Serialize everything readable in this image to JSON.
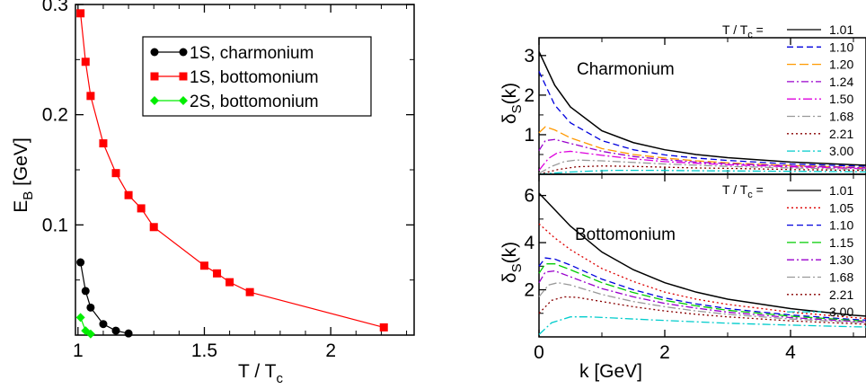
{
  "chart_data": [
    {
      "type": "scatter",
      "xlabel_main": "T / T",
      "xlabel_sub": "c",
      "ylabel_main": "E",
      "ylabel_sub": "B",
      "ylabel_unit": " [GeV]",
      "xlim": [
        0.99,
        2.33
      ],
      "ylim": [
        0,
        0.3
      ],
      "x_ticks": [
        1,
        1.5,
        2
      ],
      "x_tick_labels": [
        "1",
        "1.5",
        "2"
      ],
      "y_ticks": [
        0.1,
        0.2,
        0.3
      ],
      "y_tick_labels": [
        "0.1",
        "0.2",
        "0.3"
      ],
      "legend_position": "top-right",
      "series": [
        {
          "name": "1S, charmonium",
          "color": "#000000",
          "marker": "circle",
          "x": [
            1.01,
            1.03,
            1.05,
            1.1,
            1.15,
            1.2
          ],
          "y": [
            0.066,
            0.04,
            0.025,
            0.01,
            0.004,
            0.0015
          ]
        },
        {
          "name": "1S, bottomonium",
          "color": "#ff0000",
          "marker": "square",
          "x": [
            1.01,
            1.03,
            1.05,
            1.1,
            1.15,
            1.2,
            1.25,
            1.3,
            1.5,
            1.55,
            1.6,
            1.68,
            2.21
          ],
          "y": [
            0.292,
            0.248,
            0.217,
            0.174,
            0.147,
            0.127,
            0.115,
            0.098,
            0.063,
            0.056,
            0.048,
            0.039,
            0.007
          ]
        },
        {
          "name": "2S, bottomonium",
          "color": "#00ee00",
          "marker": "diamond",
          "x": [
            1.01,
            1.03,
            1.05
          ],
          "y": [
            0.016,
            0.004,
            0.001
          ]
        }
      ]
    },
    {
      "type": "line",
      "panel_title": "Charmonium",
      "ylabel_main": "δ",
      "ylabel_sub": "S",
      "ylabel_tail": "(k)",
      "xlim": [
        0,
        5.2
      ],
      "ylim": [
        0,
        3.45
      ],
      "y_ticks": [
        1,
        2,
        3
      ],
      "y_tick_labels": [
        "1",
        "2",
        "3"
      ],
      "legend_title_main": "T / T",
      "legend_title_sub": "c",
      "legend_title_tail": " =",
      "series": [
        {
          "name": "1.01",
          "color": "#000000",
          "dash": "",
          "x": [
            0,
            0.25,
            0.5,
            1,
            1.5,
            2,
            2.5,
            3,
            4,
            5,
            5.2
          ],
          "y": [
            3.1,
            2.25,
            1.7,
            1.1,
            0.8,
            0.62,
            0.5,
            0.42,
            0.31,
            0.24,
            0.23
          ]
        },
        {
          "name": "1.10",
          "color": "#0000dd",
          "dash": "7,4",
          "x": [
            0,
            0.25,
            0.5,
            1,
            1.5,
            2,
            2.5,
            3,
            4,
            5,
            5.2
          ],
          "y": [
            2.6,
            1.75,
            1.3,
            0.85,
            0.62,
            0.49,
            0.41,
            0.35,
            0.26,
            0.21,
            0.2
          ]
        },
        {
          "name": "1.20",
          "color": "#ff9900",
          "dash": "10,4",
          "x": [
            0,
            0.1,
            0.25,
            0.5,
            1,
            1.5,
            2,
            2.5,
            3,
            4,
            5,
            5.2
          ],
          "y": [
            1.05,
            1.2,
            1.12,
            0.92,
            0.65,
            0.5,
            0.41,
            0.34,
            0.29,
            0.22,
            0.18,
            0.17
          ]
        },
        {
          "name": "1.24",
          "color": "#9900cc",
          "dash": "8,3,2,3",
          "x": [
            0,
            0.1,
            0.25,
            0.5,
            1,
            1.5,
            2,
            2.5,
            3,
            4,
            5,
            5.2
          ],
          "y": [
            0.6,
            0.85,
            0.88,
            0.78,
            0.58,
            0.45,
            0.37,
            0.31,
            0.27,
            0.21,
            0.17,
            0.16
          ]
        },
        {
          "name": "1.50",
          "color": "#dd00dd",
          "dash": "10,3,2,3",
          "x": [
            0,
            0.15,
            0.3,
            0.5,
            1,
            1.5,
            2,
            2.5,
            3,
            4,
            5,
            5.2
          ],
          "y": [
            0.1,
            0.4,
            0.55,
            0.58,
            0.48,
            0.39,
            0.32,
            0.28,
            0.24,
            0.19,
            0.15,
            0.14
          ]
        },
        {
          "name": "1.68",
          "color": "#999999",
          "dash": "9,3,2,3",
          "x": [
            0,
            0.2,
            0.4,
            0.6,
            1,
            1.5,
            2,
            2.5,
            3,
            4,
            5,
            5.2
          ],
          "y": [
            0.02,
            0.2,
            0.32,
            0.36,
            0.34,
            0.3,
            0.26,
            0.23,
            0.2,
            0.16,
            0.13,
            0.12
          ]
        },
        {
          "name": "2.21",
          "color": "#880000",
          "dash": "2,3",
          "x": [
            0,
            0.3,
            0.6,
            1,
            1.5,
            2,
            2.5,
            3,
            4,
            5,
            5.2
          ],
          "y": [
            0.0,
            0.12,
            0.19,
            0.21,
            0.2,
            0.18,
            0.16,
            0.15,
            0.12,
            0.1,
            0.1
          ]
        },
        {
          "name": "3.00",
          "color": "#00cccc",
          "dash": "9,3,2,3",
          "x": [
            0,
            0.4,
            0.8,
            1.2,
            1.8,
            2.5,
            3,
            4,
            5,
            5.2
          ],
          "y": [
            0.0,
            0.05,
            0.08,
            0.1,
            0.1,
            0.09,
            0.085,
            0.075,
            0.065,
            0.06
          ]
        }
      ]
    },
    {
      "type": "line",
      "panel_title": "Bottomonium",
      "xlabel": "k [GeV]",
      "ylabel_main": "δ",
      "ylabel_sub": "S",
      "ylabel_tail": "(k)",
      "xlim": [
        0,
        5.2
      ],
      "ylim": [
        0,
        6.9
      ],
      "x_ticks": [
        0,
        2,
        4
      ],
      "x_tick_labels": [
        "0",
        "2",
        "4"
      ],
      "y_ticks": [
        2,
        4,
        6
      ],
      "y_tick_labels": [
        "2",
        "4",
        "6"
      ],
      "legend_title_main": "T / T",
      "legend_title_sub": "c",
      "legend_title_tail": " =",
      "series": [
        {
          "name": "1.01",
          "color": "#000000",
          "dash": "",
          "x": [
            0,
            0.25,
            0.5,
            1,
            1.5,
            2,
            2.5,
            3,
            4,
            5,
            5.2
          ],
          "y": [
            6.1,
            5.4,
            4.7,
            3.6,
            2.85,
            2.3,
            1.9,
            1.6,
            1.2,
            0.92,
            0.88
          ]
        },
        {
          "name": "1.05",
          "color": "#dd0000",
          "dash": "2,3",
          "x": [
            0,
            0.25,
            0.5,
            1,
            1.5,
            2,
            2.5,
            3,
            4,
            5,
            5.2
          ],
          "y": [
            4.8,
            4.2,
            3.7,
            2.9,
            2.35,
            1.9,
            1.6,
            1.38,
            1.05,
            0.82,
            0.78
          ]
        },
        {
          "name": "1.10",
          "color": "#0000dd",
          "dash": "7,4",
          "x": [
            0,
            0.1,
            0.25,
            0.5,
            1,
            1.5,
            2,
            2.5,
            3,
            4,
            5,
            5.2
          ],
          "y": [
            3.0,
            3.35,
            3.3,
            3.05,
            2.45,
            2.0,
            1.65,
            1.4,
            1.2,
            0.93,
            0.74,
            0.71
          ]
        },
        {
          "name": "1.15",
          "color": "#00cc00",
          "dash": "10,4",
          "x": [
            0,
            0.1,
            0.25,
            0.5,
            1,
            1.5,
            2,
            2.5,
            3,
            4,
            5,
            5.2
          ],
          "y": [
            2.7,
            3.1,
            3.1,
            2.85,
            2.3,
            1.88,
            1.55,
            1.32,
            1.13,
            0.88,
            0.7,
            0.67
          ]
        },
        {
          "name": "1.30",
          "color": "#9900cc",
          "dash": "8,3,2,3",
          "x": [
            0,
            0.1,
            0.25,
            0.5,
            1,
            1.5,
            2,
            2.5,
            3,
            4,
            5,
            5.2
          ],
          "y": [
            2.3,
            2.75,
            2.8,
            2.55,
            2.05,
            1.7,
            1.42,
            1.22,
            1.05,
            0.82,
            0.66,
            0.63
          ]
        },
        {
          "name": "1.68",
          "color": "#999999",
          "dash": "9,3,2,3",
          "x": [
            0,
            0.15,
            0.3,
            0.5,
            1,
            1.5,
            2,
            2.5,
            3,
            4,
            5,
            5.2
          ],
          "y": [
            1.7,
            2.2,
            2.3,
            2.2,
            1.8,
            1.5,
            1.28,
            1.1,
            0.96,
            0.76,
            0.62,
            0.6
          ]
        },
        {
          "name": "2.21",
          "color": "#880000",
          "dash": "2,3",
          "x": [
            0,
            0.2,
            0.4,
            0.6,
            1,
            1.5,
            2,
            2.5,
            3,
            4,
            5,
            5.2
          ],
          "y": [
            1.0,
            1.55,
            1.7,
            1.68,
            1.5,
            1.28,
            1.1,
            0.96,
            0.85,
            0.68,
            0.56,
            0.54
          ]
        },
        {
          "name": "3.00",
          "color": "#00cccc",
          "dash": "9,3,2,3",
          "x": [
            0,
            0.2,
            0.5,
            0.8,
            1.2,
            1.8,
            2.5,
            3,
            4,
            5,
            5.2
          ],
          "y": [
            0.1,
            0.6,
            0.85,
            0.85,
            0.8,
            0.72,
            0.64,
            0.58,
            0.5,
            0.43,
            0.42
          ]
        }
      ]
    }
  ]
}
